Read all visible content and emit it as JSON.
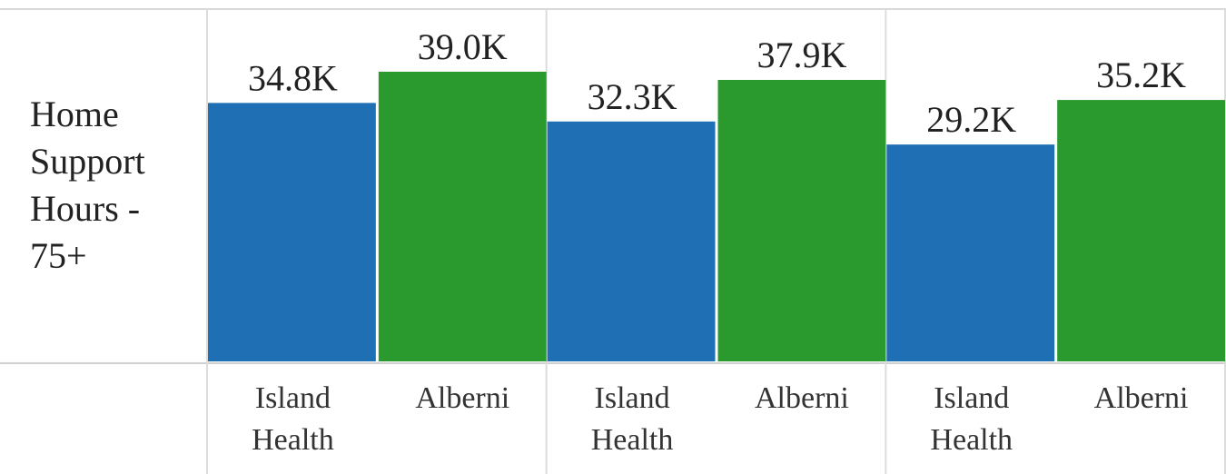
{
  "chart_data": {
    "type": "bar",
    "row_label": "Home Support Hours - 75+",
    "row_label_lines": [
      "Home",
      "Support",
      "Hours -",
      "75+"
    ],
    "groups": [
      {
        "bars": [
          {
            "category": "Island Health",
            "category_lines": [
              "Island",
              "Health"
            ],
            "value": 34.8,
            "label": "34.8K"
          },
          {
            "category": "Alberni",
            "category_lines": [
              "Alberni"
            ],
            "value": 39.0,
            "label": "39.0K"
          }
        ]
      },
      {
        "bars": [
          {
            "category": "Island Health",
            "category_lines": [
              "Island",
              "Health"
            ],
            "value": 32.3,
            "label": "32.3K"
          },
          {
            "category": "Alberni",
            "category_lines": [
              "Alberni"
            ],
            "value": 37.9,
            "label": "37.9K"
          }
        ]
      },
      {
        "bars": [
          {
            "category": "Island Health",
            "category_lines": [
              "Island",
              "Health"
            ],
            "value": 29.2,
            "label": "29.2K"
          },
          {
            "category": "Alberni",
            "category_lines": [
              "Alberni"
            ],
            "value": 35.2,
            "label": "35.2K"
          }
        ]
      }
    ],
    "value_unit": "K",
    "grid": true,
    "legend": "none",
    "colors": {
      "Island Health": "#1f6fb4",
      "Alberni": "#2a9a2e"
    }
  }
}
